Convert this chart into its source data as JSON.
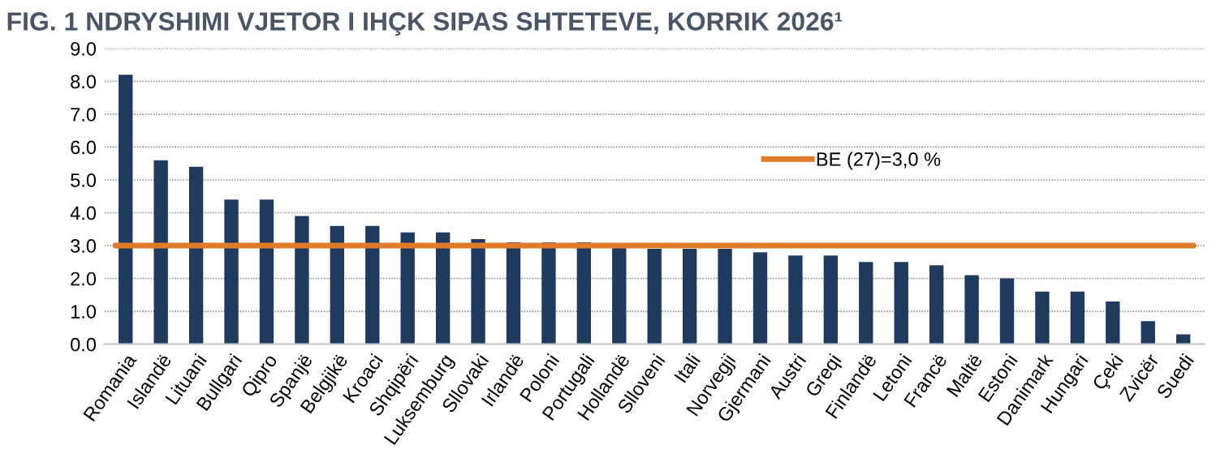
{
  "chart_data": {
    "type": "bar",
    "title": "FIG. 1 NDRYSHIMI VJETOR I IHÇK SIPAS SHTETEVE, KORRIK 2026¹",
    "categories": [
      "Romania",
      "Islandë",
      "Lituani",
      "Bullgari",
      "Qipro",
      "Spanjë",
      "Belgjikë",
      "Kroaci",
      "Shqipëri",
      "Luksemburg",
      "Sllovaki",
      "Irlandë",
      "Poloni",
      "Portugali",
      "Hollandë",
      "Slloveni",
      "Itali",
      "Norvegji",
      "Gjermani",
      "Austri",
      "Greqi",
      "Finlandë",
      "Letoni",
      "Francë",
      "Maltë",
      "Estoni",
      "Danimark",
      "Hungari",
      "Çeki",
      "Zvicër",
      "Suedi"
    ],
    "values": [
      8.2,
      5.6,
      5.4,
      4.4,
      4.4,
      3.9,
      3.6,
      3.6,
      3.4,
      3.4,
      3.2,
      3.1,
      3.1,
      3.1,
      3.0,
      2.9,
      2.9,
      2.9,
      2.8,
      2.7,
      2.7,
      2.5,
      2.5,
      2.4,
      2.1,
      2.0,
      1.6,
      1.6,
      1.3,
      0.7,
      0.3
    ],
    "color": "#1f3a5f",
    "ylim": [
      0,
      9
    ],
    "yticks": [
      {
        "value": 0,
        "label": "0.0"
      },
      {
        "value": 1,
        "label": "1.0"
      },
      {
        "value": 2,
        "label": "2.0"
      },
      {
        "value": 3,
        "label": "3.0"
      },
      {
        "value": 4,
        "label": "4.0"
      },
      {
        "value": 5,
        "label": "5.0"
      },
      {
        "value": 6,
        "label": "6.0"
      },
      {
        "value": 7,
        "label": "7.0"
      },
      {
        "value": 8,
        "label": "8.0"
      },
      {
        "value": 9,
        "label": "9.0"
      }
    ],
    "grid": "y",
    "legend": "right",
    "ref_lines": [
      {
        "axis": "y",
        "value": 3.0,
        "label": "BE (27)=3,0 %",
        "color": "#e07b2a",
        "line_style": "solid"
      }
    ]
  }
}
